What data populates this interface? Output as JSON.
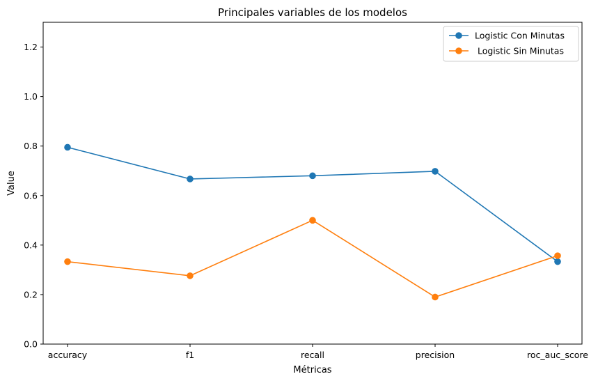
{
  "chart_data": {
    "type": "line",
    "title": "Principales variables de los modelos",
    "xlabel": "Métricas",
    "ylabel": "Value",
    "categories": [
      "accuracy",
      "f1",
      "recall",
      "precision",
      "roc_auc_score"
    ],
    "series": [
      {
        "name": "Logistic Con Minutas",
        "color": "#1f77b4",
        "values": [
          0.795,
          0.667,
          0.68,
          0.698,
          0.333
        ]
      },
      {
        "name": " Logistic Sin Minutas",
        "color": "#ff7f0e",
        "values": [
          0.333,
          0.276,
          0.5,
          0.19,
          0.357
        ]
      }
    ],
    "ylim": [
      0,
      1.3
    ],
    "yticks": [
      0.0,
      0.2,
      0.4,
      0.6,
      0.8,
      1.0,
      1.2
    ],
    "ytick_labels": [
      "0.0",
      "0.2",
      "0.4",
      "0.6",
      "0.8",
      "1.0",
      "1.2"
    ],
    "grid": false,
    "legend_position": "top-right",
    "marker": "circle"
  }
}
